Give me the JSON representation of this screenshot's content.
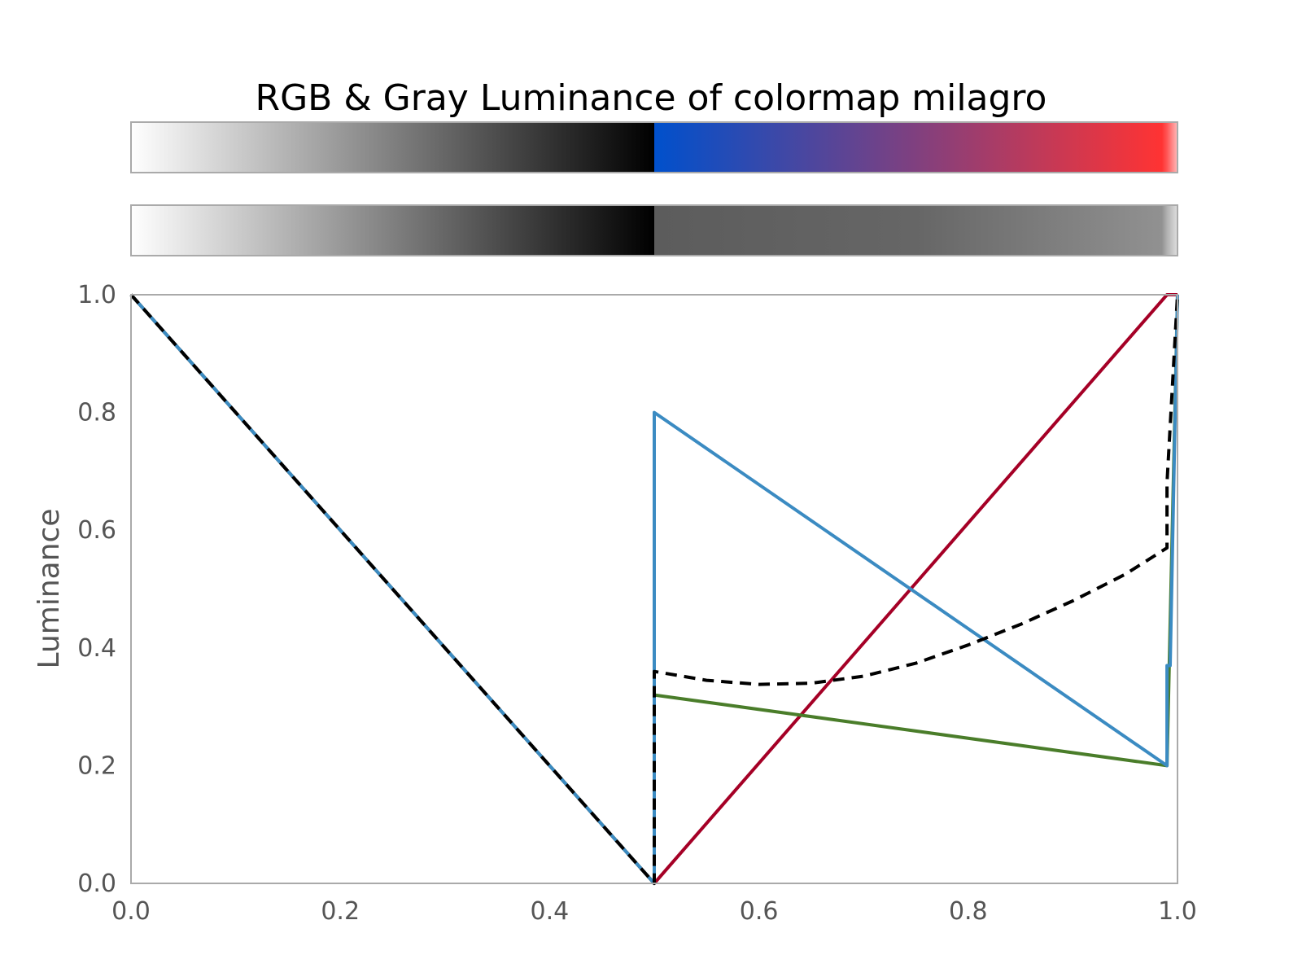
{
  "chart_data": {
    "type": "line",
    "title": "RGB & Gray Luminance of colormap milagro",
    "xlabel": "",
    "ylabel": "Luminance",
    "xlim": [
      0.0,
      1.0
    ],
    "ylim": [
      0.0,
      1.0
    ],
    "grid": false,
    "legend": "none",
    "x_ticks": [
      "0.0",
      "0.2",
      "0.4",
      "0.6",
      "0.8",
      "1.0"
    ],
    "y_ticks": [
      "0.0",
      "0.2",
      "0.4",
      "0.6",
      "0.8",
      "1.0"
    ],
    "colorbars": {
      "rgb_stops": [
        {
          "x": 0.0,
          "color": "#ffffff"
        },
        {
          "x": 0.5,
          "color": "#000000"
        },
        {
          "x": 0.5,
          "color": "#0050cc"
        },
        {
          "x": 0.75,
          "color": "#80407f"
        },
        {
          "x": 0.985,
          "color": "#ff3333"
        },
        {
          "x": 0.99,
          "color": "#ff5555"
        },
        {
          "x": 1.0,
          "color": "#ffbbbb"
        }
      ],
      "gray_stops": [
        {
          "x": 0.0,
          "color": "#ffffff"
        },
        {
          "x": 0.5,
          "color": "#000000"
        },
        {
          "x": 0.5,
          "color": "#5c5c5c"
        },
        {
          "x": 0.75,
          "color": "#666666"
        },
        {
          "x": 0.985,
          "color": "#919191"
        },
        {
          "x": 0.99,
          "color": "#b0b0b0"
        },
        {
          "x": 1.0,
          "color": "#e0e0e0"
        }
      ]
    },
    "series": [
      {
        "color": "#a50026",
        "style": "solid",
        "x": [
          0.0,
          0.5,
          0.5,
          0.99,
          1.0
        ],
        "y": [
          1.0,
          0.0,
          0.0,
          1.0,
          1.0
        ]
      },
      {
        "color": "#4a7d2a",
        "style": "solid",
        "x": [
          0.0,
          0.5,
          0.5,
          0.99,
          1.0
        ],
        "y": [
          1.0,
          0.0,
          0.32,
          0.2,
          1.0
        ]
      },
      {
        "color": "#3b8bc2",
        "style": "solid",
        "x": [
          0.0,
          0.5,
          0.5,
          0.99,
          0.99,
          0.993,
          1.0
        ],
        "y": [
          1.0,
          0.0,
          0.8,
          0.2,
          0.37,
          0.37,
          1.0
        ]
      },
      {
        "color": "#000000",
        "style": "dashed",
        "x": [
          0.0,
          0.5,
          0.5,
          0.55,
          0.6,
          0.65,
          0.7,
          0.75,
          0.8,
          0.85,
          0.9,
          0.95,
          0.99,
          0.99,
          1.0
        ],
        "y": [
          1.0,
          0.0,
          0.36,
          0.345,
          0.338,
          0.34,
          0.352,
          0.374,
          0.405,
          0.44,
          0.48,
          0.525,
          0.57,
          0.68,
          1.0
        ]
      }
    ]
  }
}
